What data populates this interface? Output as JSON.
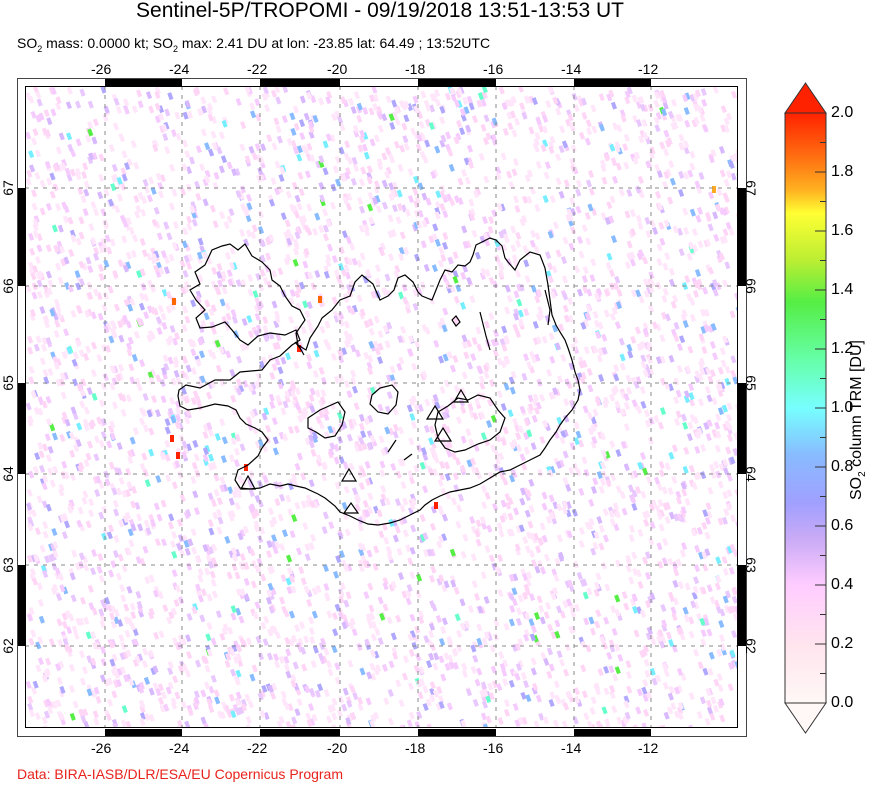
{
  "header": {
    "title": "Sentinel-5P/TROPOMI - 09/19/2018 13:51-13:53 UT",
    "subtitle_parts": {
      "p1": "SO",
      "s1": "2",
      "p2": " mass: 0.0000 kt; SO",
      "s2": "2",
      "p3": " max: 2.41 DU at lon: -23.85 lat: 64.49 ; 13:52UTC"
    }
  },
  "map": {
    "region": "Iceland",
    "lon_ticks": [
      "-26",
      "-24",
      "-22",
      "-20",
      "-18",
      "-16",
      "-14",
      "-12"
    ],
    "lat_ticks": [
      "67",
      "66",
      "65",
      "64",
      "63",
      "62"
    ],
    "volcano_markers": 7,
    "colors": {
      "frame": "#000000",
      "grid": "#888888",
      "coast": "#000000"
    }
  },
  "colorbar": {
    "title_prefix": "SO",
    "title_sub": "2",
    "title_suffix": " column TRM [DU]",
    "ticks": [
      "2.0",
      "1.8",
      "1.6",
      "1.4",
      "1.2",
      "1.0",
      "0.8",
      "0.6",
      "0.4",
      "0.2",
      "0.0"
    ],
    "min": 0.0,
    "max": 2.0,
    "colors": {
      "top_overflow": "#ff2200",
      "2.0": "#ff2200",
      "1.8": "#ff9a1a",
      "1.7": "#ffff33",
      "1.4": "#44ee55",
      "1.0": "#77ffff",
      "0.8": "#88aaff",
      "0.6": "#b8a8ff",
      "0.4": "#ffccff",
      "0.0": "#fff8f6"
    }
  },
  "footer": {
    "credit": "Data: BIRA-IASB/DLR/ESA/EU Copernicus Program"
  }
}
